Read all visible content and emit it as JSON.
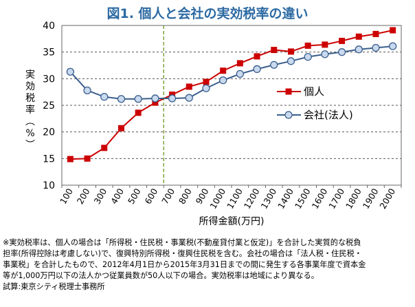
{
  "chart_data": {
    "type": "line",
    "title": "図1. 個人と会社の実効税率の違い",
    "xlabel": "所得金額(万円)",
    "ylabel": "実効税率(%)",
    "ylim": [
      10,
      40
    ],
    "yticks": [
      10,
      15,
      20,
      25,
      30,
      35,
      40
    ],
    "categories": [
      "100",
      "200",
      "300",
      "400",
      "500",
      "600",
      "700",
      "800",
      "900",
      "1000",
      "1100",
      "1200",
      "1300",
      "1400",
      "1500",
      "1600",
      "1700",
      "1800",
      "1900",
      "2000"
    ],
    "grid": "horizontal dashed",
    "reference_line": {
      "position": "between 600 and 700",
      "color": "#7a9a2e",
      "style": "dashed"
    },
    "legend": "right-center",
    "series": [
      {
        "name": "個人",
        "color": "#cc0000",
        "marker": "square",
        "values": [
          14.9,
          15.0,
          17.0,
          20.7,
          23.6,
          25.5,
          27.0,
          28.5,
          29.4,
          31.5,
          32.9,
          34.2,
          35.4,
          35.1,
          36.2,
          36.4,
          37.1,
          37.9,
          38.4,
          39.1
        ]
      },
      {
        "name": "会社(法人)",
        "color": "#3a5e8c",
        "marker": "circle",
        "marker_fill": "#c9d9ee",
        "values": [
          31.3,
          27.8,
          26.6,
          26.2,
          26.2,
          26.3,
          26.3,
          26.4,
          28.2,
          29.7,
          30.9,
          31.8,
          32.6,
          33.3,
          34.1,
          34.6,
          35.0,
          35.5,
          35.8,
          36.1
        ]
      }
    ]
  },
  "footnote": {
    "line1": "※実効税率は、個人の場合は「所得税・住民税・事業税(不動産貸付業と仮定)」を合計した実質的な税負",
    "line2": "担率(所得控除は考慮しない)で、復興特別所得税・復興住民税を含む。会社の場合は「法人税・住民税・",
    "line3": "事業税」を合計したもので、2012年4月1日から2015年3月31日までの間に発生する各事業年度で資本金",
    "line4": "等が1,000万円以下の法人かつ従業員数が50人以下の場合。実効税率は地域により異なる。",
    "line5": "試算:東京シティ税理士事務所"
  }
}
